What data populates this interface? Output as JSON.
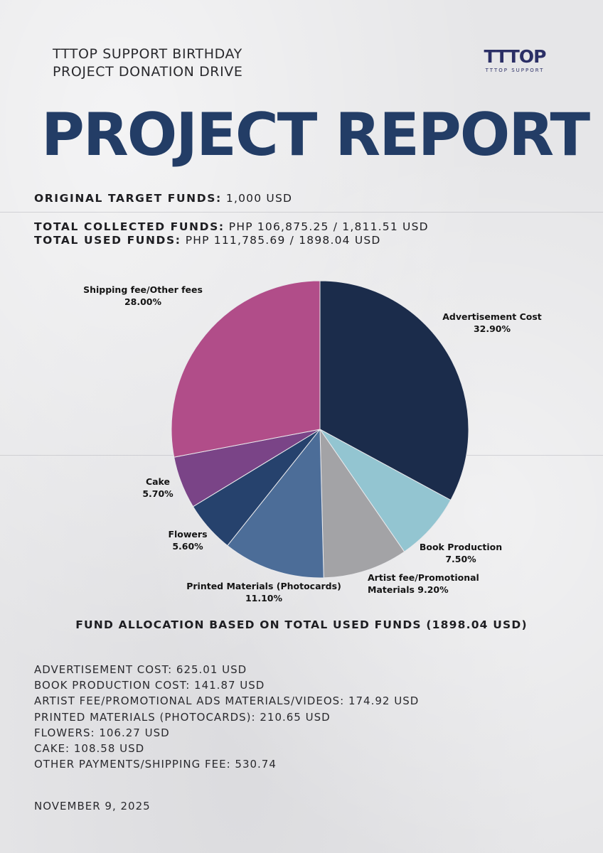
{
  "header": {
    "subtitle_line1": "TTTOP SUPPORT BIRTHDAY",
    "subtitle_line2": "PROJECT DONATION DRIVE",
    "title": "PROJECT REPORT"
  },
  "logo": {
    "text": "TTTOP",
    "subtext": "TTTOP SUPPORT",
    "color": "#2b2f66"
  },
  "stats": {
    "target_label": "ORIGINAL TARGET FUNDS:",
    "target_value": "1,000 USD",
    "collected_label": "TOTAL COLLECTED FUNDS:",
    "collected_value": "PHP 106,875.25 / 1,811.51 USD",
    "used_label": "TOTAL USED FUNDS:",
    "used_value": "PHP 111,785.69 / 1898.04 USD"
  },
  "chart_data": {
    "type": "pie",
    "title": "",
    "start_angle": "12 o'clock",
    "direction": "clockwise",
    "slices": [
      {
        "label": "Advertisement Cost",
        "value": 32.9,
        "display": "32.90%",
        "color": "#1b2c4b",
        "label_lines": [
          "Advertisement Cost",
          "32.90%"
        ]
      },
      {
        "label": "Book Production",
        "value": 7.5,
        "display": "7.50%",
        "color": "#93c5d1",
        "label_lines": [
          "Book Production",
          "7.50%"
        ]
      },
      {
        "label": "Artist fee/Promotional Materials",
        "value": 9.2,
        "display": "9.20%",
        "color": "#a3a3a6",
        "label_lines": [
          "Artist fee/Promotional",
          "Materials 9.20%"
        ]
      },
      {
        "label": "Printed Materials (Photocards)",
        "value": 11.1,
        "display": "11.10%",
        "color": "#4c6d98",
        "label_lines": [
          "Printed Materials (Photocards)",
          "11.10%"
        ]
      },
      {
        "label": "Flowers",
        "value": 5.6,
        "display": "5.60%",
        "color": "#26426d",
        "label_lines": [
          "Flowers",
          "5.60%"
        ]
      },
      {
        "label": "Cake",
        "value": 5.7,
        "display": "5.70%",
        "color": "#7a4487",
        "label_lines": [
          "Cake",
          "5.70%"
        ]
      },
      {
        "label": "Shipping fee/Other fees",
        "value": 28.0,
        "display": "28.00%",
        "color": "#b14d89",
        "label_lines": [
          "Shipping fee/Other fees",
          "28.00%"
        ]
      }
    ]
  },
  "allocation": {
    "title": "FUND ALLOCATION BASED ON TOTAL USED FUNDS (1898.04 USD)",
    "items": [
      "ADVERTISEMENT COST: 625.01 USD",
      "BOOK PRODUCTION COST: 141.87 USD",
      "ARTIST FEE/PROMOTIONAL ADS MATERIALS/VIDEOS: 174.92 USD",
      "PRINTED MATERIALS (PHOTOCARDS): 210.65 USD",
      "FLOWERS: 106.27 USD",
      "CAKE: 108.58 USD",
      "OTHER PAYMENTS/SHIPPING FEE: 530.74"
    ]
  },
  "date": "NOVEMBER 9, 2025"
}
